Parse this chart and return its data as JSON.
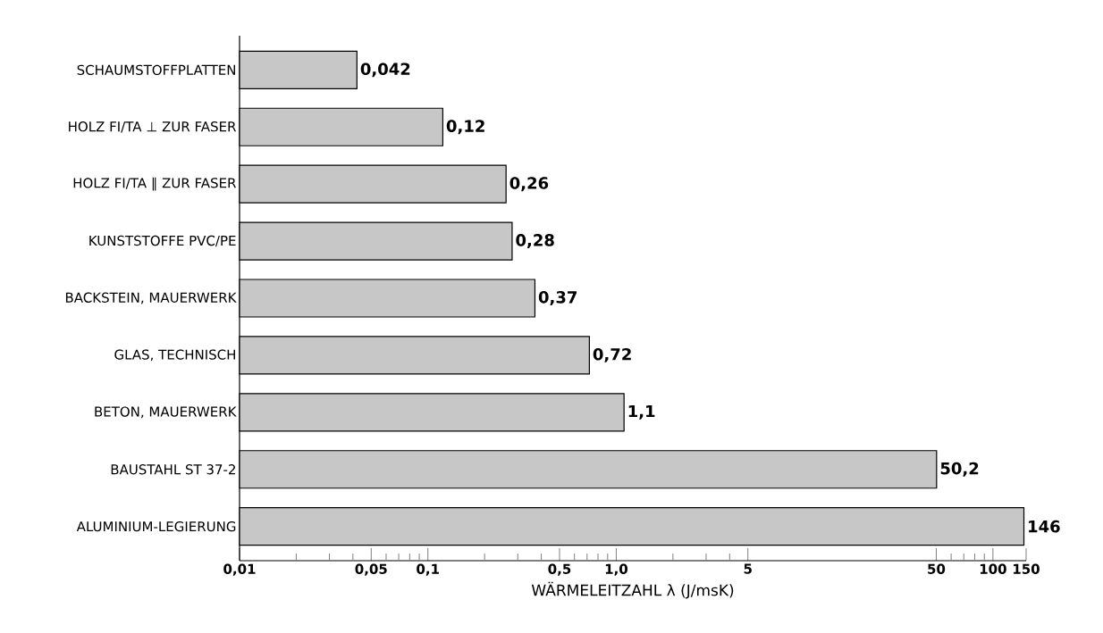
{
  "chart_data": {
    "type": "bar",
    "orientation": "horizontal",
    "log": "x",
    "categories": [
      "SCHAUMSTOFFPLATTEN",
      "HOLZ FI/TA ⊥ ZUR FASER",
      "HOLZ FI/TA ∥ ZUR FASER",
      "KUNSTSTOFFE PVC/PE",
      "BACKSTEIN, MAUERWERK",
      "GLAS, TECHNISCH",
      "BETON, MAUERWERK",
      "BAUSTAHL ST 37-2",
      "ALUMINIUM-LEGIERUNG"
    ],
    "values": [
      0.042,
      0.12,
      0.26,
      0.28,
      0.37,
      0.72,
      1.1,
      50.2,
      146
    ],
    "value_labels": [
      "0,042",
      "0,12",
      "0,26",
      "0,28",
      "0,37",
      "0,72",
      "1,1",
      "50,2",
      "146"
    ],
    "color": "#c7c7c7",
    "xlabel": "WÄRMELEITZAHL λ (J/msK)",
    "xlim": [
      0.01,
      150
    ],
    "xticks": [
      {
        "value": 0.01,
        "label": "0,01"
      },
      {
        "value": 0.02,
        "label": null
      },
      {
        "value": 0.03,
        "label": null
      },
      {
        "value": 0.04,
        "label": null
      },
      {
        "value": 0.05,
        "label": "0,05"
      },
      {
        "value": 0.06,
        "label": null
      },
      {
        "value": 0.07,
        "label": null
      },
      {
        "value": 0.08,
        "label": null
      },
      {
        "value": 0.09,
        "label": null
      },
      {
        "value": 0.1,
        "label": "0,1"
      },
      {
        "value": 0.2,
        "label": null
      },
      {
        "value": 0.3,
        "label": null
      },
      {
        "value": 0.4,
        "label": null
      },
      {
        "value": 0.5,
        "label": "0,5"
      },
      {
        "value": 0.6,
        "label": null
      },
      {
        "value": 0.7,
        "label": null
      },
      {
        "value": 0.8,
        "label": null
      },
      {
        "value": 0.9,
        "label": null
      },
      {
        "value": 1,
        "label": "1,0"
      },
      {
        "value": 2,
        "label": null
      },
      {
        "value": 3,
        "label": null
      },
      {
        "value": 4,
        "label": null
      },
      {
        "value": 5,
        "label": "5"
      },
      {
        "value": 50,
        "label": "50"
      },
      {
        "value": 60,
        "label": null
      },
      {
        "value": 70,
        "label": null
      },
      {
        "value": 80,
        "label": null
      },
      {
        "value": 90,
        "label": null
      },
      {
        "value": 100,
        "label": "100"
      },
      {
        "value": 150,
        "label": "150"
      }
    ]
  }
}
